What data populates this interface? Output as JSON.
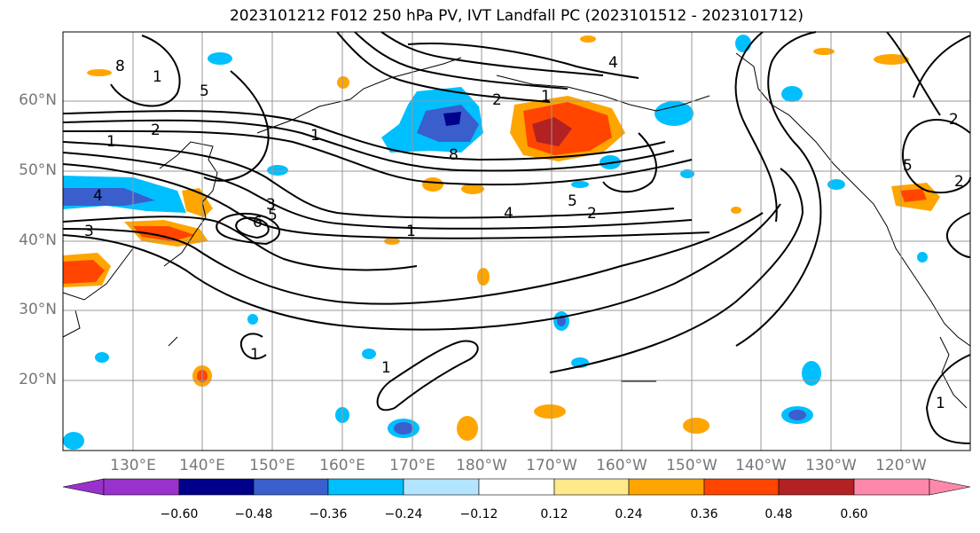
{
  "title": "2023101212 F012 250 hPa PV, IVT Landfall PC (2023101512 - 2023101712)",
  "latitude_labels": [
    "60°N",
    "50°N",
    "40°N",
    "30°N",
    "20°N"
  ],
  "longitude_labels": [
    "130°E",
    "140°E",
    "150°E",
    "160°E",
    "170°E",
    "180°W",
    "170°W",
    "160°W",
    "150°W",
    "140°W",
    "130°W",
    "120°W"
  ],
  "colorbar": {
    "tick_labels": [
      "−0.60",
      "−0.48",
      "−0.36",
      "−0.24",
      "−0.12",
      "0.12",
      "0.24",
      "0.36",
      "0.48",
      "0.60"
    ],
    "colors": [
      "#9932cc",
      "#00008b",
      "#3a5fcd",
      "#00bfff",
      "#b3e5ff",
      "#ffffff",
      "#ffe98a",
      "#ffa500",
      "#ff4500",
      "#b22222",
      "#ff88aa"
    ]
  },
  "contour_labels": [
    "8",
    "1",
    "5",
    "1",
    "2",
    "1",
    "4",
    "3",
    "6",
    "5",
    "3",
    "2",
    "1",
    "8",
    "4",
    "5",
    "2",
    "1",
    "4",
    "5",
    "2",
    "1",
    "1",
    "1",
    "2"
  ]
}
